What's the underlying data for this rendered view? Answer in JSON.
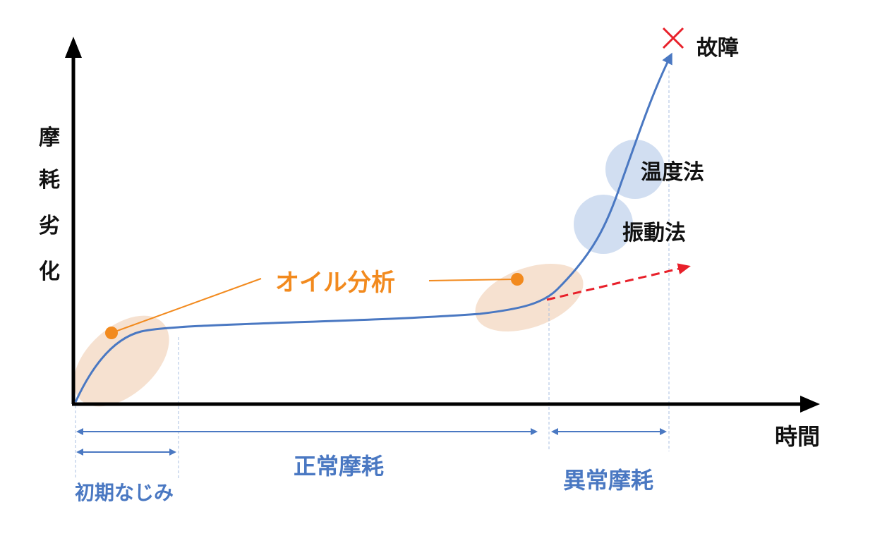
{
  "axes": {
    "y_label_chars": [
      "摩",
      "耗",
      "劣",
      "化"
    ],
    "x_label": "時間"
  },
  "annotations": {
    "failure_label": "故障",
    "oil_analysis": "オイル分析",
    "temperature_method": "温度法",
    "vibration_method": "振動法"
  },
  "phases": {
    "initial": "初期なじみ",
    "normal": "正常摩耗",
    "abnormal": "異常摩耗"
  },
  "colors": {
    "curve": "#4a78c2",
    "axis": "#000000",
    "oil": "#f28a1e",
    "oil_zone": "#f5dcc8",
    "method_zone": "#c9d8ef",
    "trend_arrow": "#e8202a",
    "failure_mark": "#e8202a"
  }
}
